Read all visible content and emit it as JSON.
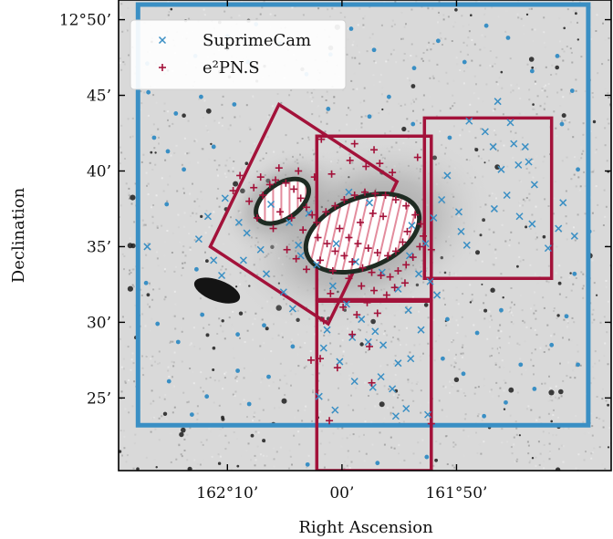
{
  "chart_data": {
    "type": "scatter",
    "xlabel": "Right Ascension",
    "ylabel": "Declination",
    "xlim_arcmin_offset": [
      -19.5,
      23.5
    ],
    "ylim_arcmin": [
      20.2,
      51.3
    ],
    "x_reversed": true,
    "x_ticks": [
      {
        "value": -10,
        "label": "162°10’"
      },
      {
        "value": 0,
        "label": "00’"
      },
      {
        "value": 10,
        "label": "161°50’"
      }
    ],
    "y_ticks": [
      {
        "value": 25,
        "label": "25’"
      },
      {
        "value": 30,
        "label": "30’"
      },
      {
        "value": 35,
        "label": "35’"
      },
      {
        "value": 40,
        "label": "40’"
      },
      {
        "value": 45,
        "label": "45’"
      },
      {
        "value": 50,
        "label": "12°50’"
      }
    ],
    "legend": {
      "position": "top-left",
      "entries": [
        {
          "label": "SuprimeCam",
          "marker": "x",
          "color": "#3a8fc4"
        },
        {
          "label": "e²PN.S",
          "marker": "+",
          "color": "#a3123a"
        }
      ]
    },
    "colors": {
      "suprimecam": "#3a8fc4",
      "e2pns": "#a3123a",
      "galaxy_edge": "#1e2b22",
      "galaxy_hatch": "#e38c9d"
    },
    "fields": [
      {
        "name": "SuprimeCam",
        "color": "#3a8fc4",
        "corners": [
          [
            -17.8,
            23.2
          ],
          [
            21.5,
            23.2
          ],
          [
            21.5,
            51.0
          ],
          [
            -17.8,
            51.0
          ]
        ]
      },
      {
        "name": "e²PN.S field 1",
        "color": "#a3123a",
        "corners": [
          [
            -11.5,
            35.0
          ],
          [
            -1.2,
            29.9
          ],
          [
            4.8,
            39.3
          ],
          [
            -5.5,
            44.4
          ]
        ]
      },
      {
        "name": "e²PN.S field 2",
        "color": "#a3123a",
        "corners": [
          [
            -2.2,
            31.5
          ],
          [
            7.8,
            31.5
          ],
          [
            7.8,
            42.3
          ],
          [
            -2.2,
            42.3
          ]
        ]
      },
      {
        "name": "e²PN.S field 3",
        "color": "#a3123a",
        "corners": [
          [
            7.2,
            32.9
          ],
          [
            18.3,
            32.9
          ],
          [
            18.3,
            43.5
          ],
          [
            7.2,
            43.5
          ]
        ]
      },
      {
        "name": "e²PN.S field 4",
        "color": "#a3123a",
        "corners": [
          [
            -2.2,
            20.2
          ],
          [
            7.8,
            20.2
          ],
          [
            7.8,
            31.4
          ],
          [
            -2.2,
            31.4
          ]
        ]
      }
    ],
    "galaxies": [
      {
        "cx": -5.2,
        "cy": 38.0,
        "rx": 2.6,
        "ry": 1.15,
        "angle": -35
      },
      {
        "cx": 1.8,
        "cy": 35.9,
        "rx": 5.2,
        "ry": 2.3,
        "angle": -22
      },
      {
        "cx": -10.9,
        "cy": 32.1,
        "rx": 2.1,
        "ry": 0.7,
        "angle": 20,
        "unhatched": true
      }
    ],
    "series": [
      {
        "name": "SuprimeCam",
        "marker": "x",
        "points": [
          [
            -17.0,
            35.0
          ],
          [
            -12.5,
            35.5
          ],
          [
            -11.2,
            34.1
          ],
          [
            -10.5,
            33.1
          ],
          [
            -11.7,
            37.0
          ],
          [
            -10.2,
            38.2
          ],
          [
            -9.0,
            36.6
          ],
          [
            -8.3,
            35.9
          ],
          [
            -7.1,
            34.8
          ],
          [
            -8.6,
            34.1
          ],
          [
            -6.6,
            33.2
          ],
          [
            -5.1,
            32.0
          ],
          [
            -4.3,
            30.9
          ],
          [
            -6.2,
            37.8
          ],
          [
            -3.8,
            35.1
          ],
          [
            -2.2,
            33.8
          ],
          [
            -0.8,
            32.4
          ],
          [
            0.4,
            31.2
          ],
          [
            1.7,
            30.2
          ],
          [
            2.9,
            29.4
          ],
          [
            3.6,
            28.5
          ],
          [
            4.9,
            27.3
          ],
          [
            6.0,
            27.6
          ],
          [
            -1.6,
            28.3
          ],
          [
            -0.2,
            27.4
          ],
          [
            1.1,
            26.1
          ],
          [
            2.7,
            25.7
          ],
          [
            3.4,
            26.4
          ],
          [
            -2.0,
            25.1
          ],
          [
            -0.6,
            24.2
          ],
          [
            4.7,
            23.8
          ],
          [
            5.6,
            24.3
          ],
          [
            7.5,
            23.9
          ],
          [
            4.4,
            25.6
          ],
          [
            2.3,
            28.7
          ],
          [
            5.8,
            30.8
          ],
          [
            6.9,
            29.5
          ],
          [
            7.3,
            35.2
          ],
          [
            6.1,
            36.4
          ],
          [
            8.0,
            36.9
          ],
          [
            8.7,
            38.1
          ],
          [
            10.4,
            36.0
          ],
          [
            10.9,
            35.1
          ],
          [
            10.2,
            37.3
          ],
          [
            9.2,
            39.7
          ],
          [
            13.2,
            41.6
          ],
          [
            13.9,
            40.1
          ],
          [
            15.0,
            41.8
          ],
          [
            16.3,
            40.6
          ],
          [
            16.8,
            39.1
          ],
          [
            14.4,
            38.4
          ],
          [
            13.3,
            37.5
          ],
          [
            15.5,
            37.0
          ],
          [
            16.6,
            36.5
          ],
          [
            11.1,
            43.3
          ],
          [
            12.5,
            42.6
          ],
          [
            14.7,
            43.2
          ],
          [
            13.6,
            44.6
          ],
          [
            16.0,
            41.6
          ],
          [
            15.4,
            40.4
          ],
          [
            18.0,
            34.9
          ],
          [
            18.9,
            36.2
          ],
          [
            20.3,
            35.7
          ],
          [
            19.3,
            37.9
          ],
          [
            4.9,
            32.2
          ],
          [
            3.5,
            33.3
          ],
          [
            1.2,
            34.0
          ],
          [
            -0.5,
            35.2
          ],
          [
            2.4,
            37.9
          ],
          [
            0.6,
            38.6
          ],
          [
            -2.9,
            37.2
          ],
          [
            -4.6,
            36.6
          ],
          [
            -3.6,
            34.4
          ],
          [
            5.9,
            34.4
          ],
          [
            6.7,
            33.2
          ],
          [
            7.7,
            32.7
          ],
          [
            8.3,
            31.8
          ],
          [
            -1.3,
            29.5
          ],
          [
            0.9,
            29.0
          ]
        ]
      },
      {
        "name": "e²PN.S",
        "marker": "+",
        "points": [
          [
            -7.1,
            39.6
          ],
          [
            -6.3,
            39.1
          ],
          [
            -5.8,
            39.4
          ],
          [
            -4.9,
            39.2
          ],
          [
            -4.2,
            38.8
          ],
          [
            -3.6,
            38.2
          ],
          [
            -3.1,
            37.6
          ],
          [
            -2.6,
            37.1
          ],
          [
            -2.2,
            36.6
          ],
          [
            -6.9,
            38.4
          ],
          [
            -7.7,
            38.9
          ],
          [
            -8.1,
            38.0
          ],
          [
            -5.4,
            37.3
          ],
          [
            -4.4,
            36.9
          ],
          [
            -3.4,
            36.1
          ],
          [
            -2.1,
            35.6
          ],
          [
            -1.3,
            35.2
          ],
          [
            -0.6,
            34.7
          ],
          [
            0.2,
            34.4
          ],
          [
            0.9,
            34.0
          ],
          [
            1.8,
            33.6
          ],
          [
            2.6,
            33.3
          ],
          [
            3.4,
            33.1
          ],
          [
            4.2,
            33.0
          ],
          [
            4.9,
            33.4
          ],
          [
            5.6,
            33.8
          ],
          [
            6.2,
            34.3
          ],
          [
            6.8,
            35.0
          ],
          [
            7.1,
            35.7
          ],
          [
            6.9,
            36.5
          ],
          [
            6.4,
            37.1
          ],
          [
            5.6,
            37.7
          ],
          [
            4.7,
            38.1
          ],
          [
            3.8,
            38.4
          ],
          [
            2.9,
            38.5
          ],
          [
            2.0,
            38.6
          ],
          [
            1.1,
            38.4
          ],
          [
            0.2,
            38.1
          ],
          [
            -0.6,
            37.7
          ],
          [
            -1.4,
            37.3
          ],
          [
            -0.2,
            36.2
          ],
          [
            0.6,
            35.6
          ],
          [
            1.4,
            35.2
          ],
          [
            2.3,
            34.9
          ],
          [
            3.1,
            34.6
          ],
          [
            4.0,
            34.4
          ],
          [
            4.7,
            34.7
          ],
          [
            5.3,
            35.3
          ],
          [
            5.7,
            36.0
          ],
          [
            1.6,
            36.6
          ],
          [
            2.7,
            37.2
          ],
          [
            3.6,
            37.0
          ],
          [
            -1.9,
            34.1
          ],
          [
            -0.8,
            33.4
          ],
          [
            0.6,
            32.9
          ],
          [
            1.7,
            32.4
          ],
          [
            2.8,
            32.1
          ],
          [
            3.9,
            31.8
          ],
          [
            4.6,
            32.3
          ],
          [
            5.5,
            32.6
          ],
          [
            -3.1,
            33.5
          ],
          [
            -4.0,
            34.2
          ],
          [
            -4.8,
            34.8
          ],
          [
            -1.0,
            31.9
          ],
          [
            0.1,
            31.0
          ],
          [
            1.3,
            30.5
          ],
          [
            2.2,
            31.3
          ],
          [
            3.1,
            30.6
          ],
          [
            -2.4,
            39.6
          ],
          [
            -0.9,
            39.8
          ],
          [
            0.7,
            40.7
          ],
          [
            2.1,
            40.3
          ],
          [
            3.3,
            40.5
          ],
          [
            4.4,
            39.9
          ],
          [
            -5.5,
            40.2
          ],
          [
            -3.8,
            40.0
          ],
          [
            -6.0,
            36.2
          ],
          [
            -7.4,
            36.9
          ],
          [
            -8.9,
            39.7
          ],
          [
            -9.5,
            38.7
          ],
          [
            -1.6,
            30.1
          ],
          [
            0.9,
            29.2
          ],
          [
            2.4,
            28.4
          ],
          [
            -0.4,
            27.0
          ],
          [
            -1.9,
            27.6
          ],
          [
            1.1,
            41.8
          ],
          [
            2.8,
            41.4
          ],
          [
            -1.8,
            42.1
          ],
          [
            6.6,
            40.9
          ],
          [
            7.8,
            34.8
          ],
          [
            -2.7,
            27.5
          ],
          [
            2.6,
            26.0
          ],
          [
            -1.1,
            23.5
          ],
          [
            7.8,
            23.3
          ]
        ]
      },
      {
        "name": "dots",
        "marker": "dot",
        "points": [
          [
            -17.0,
            47.1
          ],
          [
            -16.4,
            42.2
          ],
          [
            -15.2,
            41.3
          ],
          [
            -14.5,
            43.8
          ],
          [
            -12.3,
            44.9
          ],
          [
            -12.8,
            47.6
          ],
          [
            -10.0,
            48.9
          ],
          [
            -8.2,
            47.2
          ],
          [
            -7.5,
            49.7
          ],
          [
            -5.4,
            48.4
          ],
          [
            -3.1,
            46.4
          ],
          [
            -1.0,
            47.7
          ],
          [
            0.8,
            49.4
          ],
          [
            2.8,
            48.0
          ],
          [
            4.1,
            44.9
          ],
          [
            6.3,
            46.8
          ],
          [
            8.4,
            48.6
          ],
          [
            10.7,
            47.2
          ],
          [
            12.6,
            49.6
          ],
          [
            14.5,
            48.8
          ],
          [
            16.6,
            46.6
          ],
          [
            18.8,
            47.6
          ],
          [
            20.1,
            45.3
          ],
          [
            19.2,
            43.1
          ],
          [
            20.6,
            40.1
          ],
          [
            21.6,
            36.0
          ],
          [
            20.3,
            33.2
          ],
          [
            19.6,
            30.4
          ],
          [
            18.3,
            28.5
          ],
          [
            20.6,
            27.2
          ],
          [
            16.8,
            25.6
          ],
          [
            14.3,
            24.7
          ],
          [
            12.4,
            23.8
          ],
          [
            10.6,
            26.6
          ],
          [
            11.8,
            29.3
          ],
          [
            13.9,
            30.8
          ],
          [
            15.6,
            27.2
          ],
          [
            9.2,
            30.2
          ],
          [
            8.8,
            27.6
          ],
          [
            -4.3,
            28.4
          ],
          [
            -6.8,
            29.8
          ],
          [
            -9.1,
            29.2
          ],
          [
            -12.2,
            30.5
          ],
          [
            -14.3,
            28.7
          ],
          [
            -16.1,
            29.9
          ],
          [
            -15.1,
            26.1
          ],
          [
            -11.8,
            25.1
          ],
          [
            -8.1,
            24.6
          ],
          [
            -6.4,
            26.4
          ],
          [
            -13.1,
            23.9
          ],
          [
            -17.1,
            32.6
          ],
          [
            -15.3,
            37.8
          ],
          [
            -13.8,
            40.1
          ],
          [
            -11.2,
            41.6
          ],
          [
            -9.4,
            44.4
          ],
          [
            -1.2,
            44.1
          ],
          [
            2.4,
            43.6
          ],
          [
            6.2,
            43.1
          ],
          [
            9.4,
            42.2
          ],
          [
            -3.0,
            20.6
          ],
          [
            3.1,
            20.7
          ],
          [
            7.4,
            21.1
          ],
          [
            -16.9,
            45.2
          ],
          [
            -12.7,
            33.5
          ],
          [
            -9.1,
            26.8
          ]
        ]
      }
    ]
  }
}
